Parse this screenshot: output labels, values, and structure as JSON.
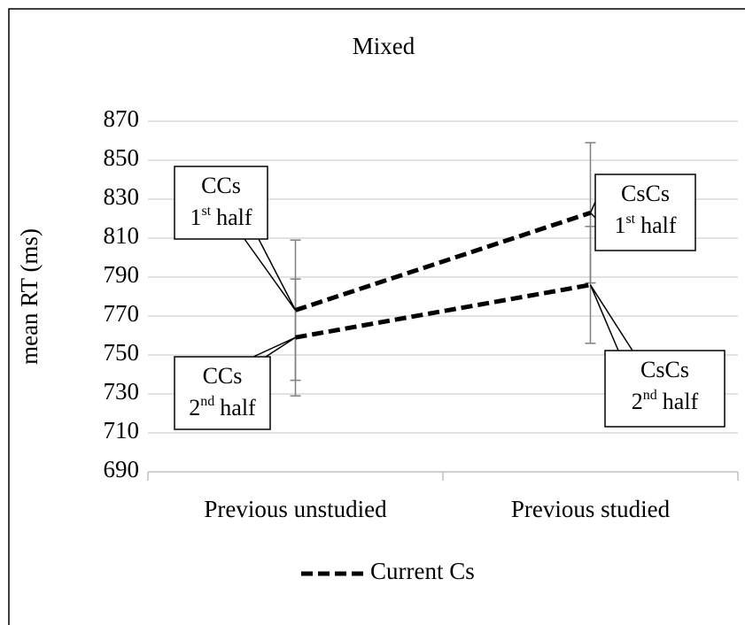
{
  "chart_data": {
    "type": "line",
    "title": "Mixed",
    "y_label": "mean RT (ms)",
    "categories": [
      "Previous unstudied",
      "Previous studied"
    ],
    "series": [
      {
        "name": "Current Cs",
        "color": "#000000",
        "values": [
          773,
          823
        ],
        "errors": [
          36,
          36
        ]
      },
      {
        "color": "#000000",
        "values": [
          759,
          786
        ],
        "errors": [
          30,
          30
        ]
      }
    ],
    "ylim": [
      690,
      870
    ],
    "yticks": [
      690,
      710,
      730,
      750,
      770,
      790,
      810,
      830,
      850,
      870
    ],
    "grid": true,
    "dashed": true,
    "legend": "bottom",
    "annotations": [
      {
        "label": "CCs",
        "ord": "1",
        "sup": "st",
        "word": "half"
      },
      {
        "label": "CsCs",
        "ord": "1",
        "sup": "st",
        "word": "half"
      },
      {
        "label": "CCs",
        "ord": "2",
        "sup": "nd",
        "word": "half"
      },
      {
        "label": "CsCs",
        "ord": "2",
        "sup": "nd",
        "word": "half"
      }
    ]
  }
}
